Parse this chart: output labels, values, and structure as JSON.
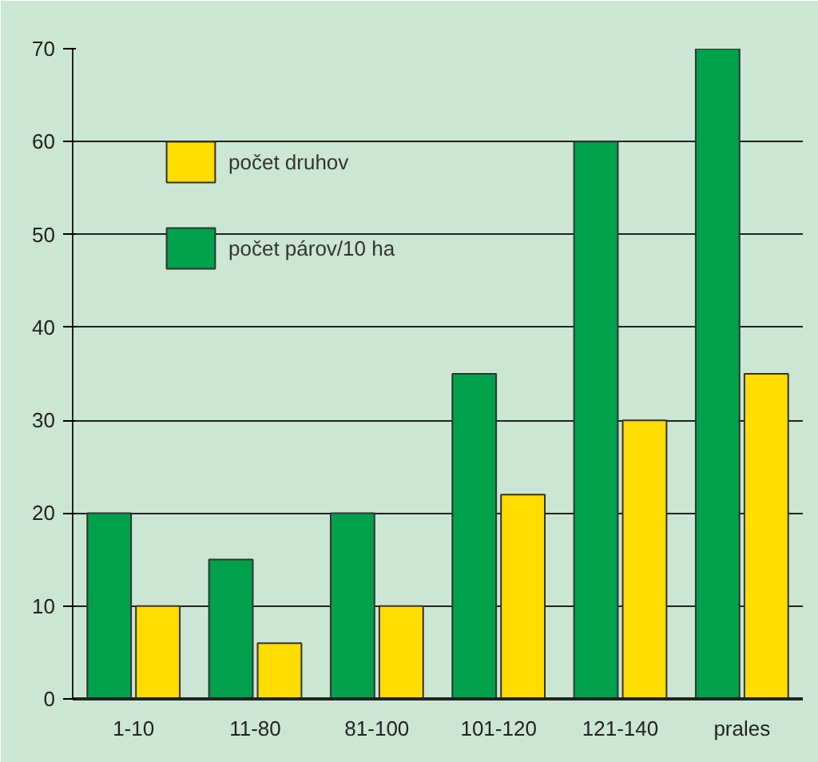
{
  "chart_data": {
    "type": "bar",
    "categories": [
      "1-10",
      "11-80",
      "81-100",
      "101-120",
      "121-140",
      "prales"
    ],
    "series": [
      {
        "name": "počet párov/10 ha",
        "color": "#00a14b",
        "values": [
          20,
          15,
          20,
          35,
          60,
          70
        ]
      },
      {
        "name": "počet druhov",
        "color": "#ffdd00",
        "values": [
          10,
          6,
          10,
          22,
          30,
          35
        ]
      }
    ],
    "ylim": [
      0,
      70
    ],
    "yticks": [
      0,
      10,
      20,
      30,
      40,
      50,
      60,
      70
    ],
    "grid": "y",
    "legend": "top left"
  }
}
